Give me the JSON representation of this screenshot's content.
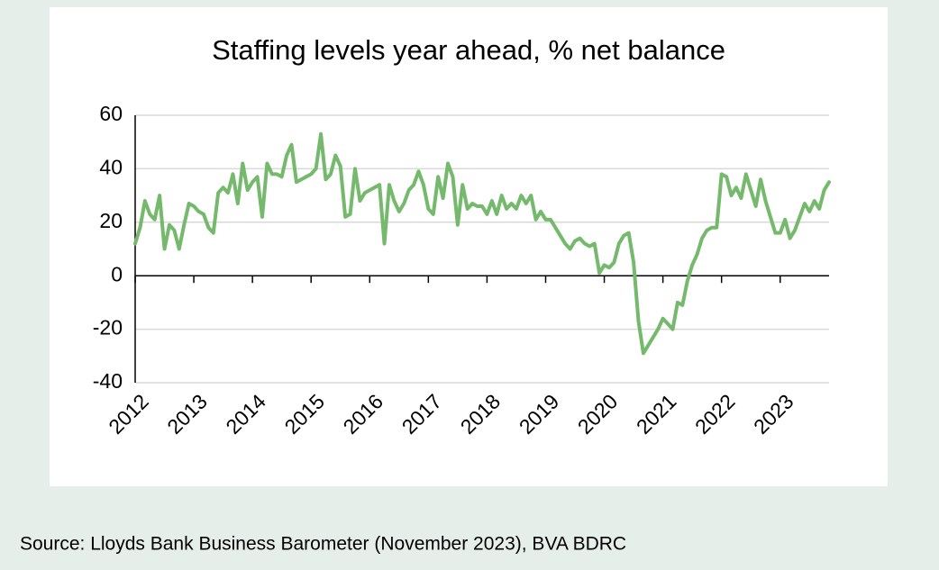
{
  "chart_data": {
    "type": "line",
    "title": "Staffing levels year ahead, % net balance",
    "source": "Source: Lloyds Bank Business Barometer (November 2023), BVA BDRC",
    "categories": [
      "2012",
      null,
      null,
      null,
      null,
      null,
      null,
      null,
      null,
      null,
      null,
      null,
      "2013",
      null,
      null,
      null,
      null,
      null,
      null,
      null,
      null,
      null,
      null,
      null,
      "2014",
      null,
      null,
      null,
      null,
      null,
      null,
      null,
      null,
      null,
      null,
      null,
      "2015",
      null,
      null,
      null,
      null,
      null,
      null,
      null,
      null,
      null,
      null,
      null,
      "2016",
      null,
      null,
      null,
      null,
      null,
      null,
      null,
      null,
      null,
      null,
      null,
      "2017",
      null,
      null,
      null,
      null,
      null,
      null,
      null,
      null,
      null,
      null,
      null,
      "2018",
      null,
      null,
      null,
      null,
      null,
      null,
      null,
      null,
      null,
      null,
      null,
      "2019",
      null,
      null,
      null,
      null,
      null,
      null,
      null,
      null,
      null,
      null,
      null,
      "2020",
      null,
      null,
      null,
      null,
      null,
      null,
      null,
      null,
      null,
      null,
      null,
      "2021",
      null,
      null,
      null,
      null,
      null,
      null,
      null,
      null,
      null,
      null,
      null,
      "2022",
      null,
      null,
      null,
      null,
      null,
      null,
      null,
      null,
      null,
      null,
      null,
      "2023",
      null,
      null,
      null,
      null,
      null,
      null,
      null,
      null,
      null,
      null
    ],
    "series": [
      {
        "name": "Staffing levels",
        "color": "#74b96c",
        "values": [
          12,
          18,
          28,
          23,
          21,
          30,
          10,
          19,
          17,
          10,
          19,
          27,
          26,
          24,
          23,
          18,
          16,
          31,
          33,
          31,
          38,
          27,
          42,
          32,
          35,
          37,
          22,
          42,
          38,
          38,
          37,
          45,
          49,
          35,
          36,
          37,
          38,
          40,
          53,
          36,
          38,
          45,
          41,
          22,
          23,
          40,
          28,
          31,
          32,
          33,
          34,
          12,
          34,
          28,
          24,
          27,
          32,
          34,
          39,
          34,
          25,
          23,
          37,
          29,
          42,
          37,
          19,
          34,
          25,
          27,
          26,
          26,
          23,
          28,
          23,
          30,
          25,
          27,
          25,
          30,
          27,
          30,
          21,
          24,
          21,
          21,
          18,
          15,
          12,
          10,
          13,
          14,
          12,
          11,
          12,
          1,
          4,
          3,
          5,
          12,
          15,
          16,
          5,
          -17,
          -29,
          -26,
          -23,
          -20,
          -16,
          -18,
          -20,
          -10,
          -11,
          -2,
          4,
          8,
          14,
          17,
          18,
          18,
          38,
          37,
          30,
          33,
          29,
          38,
          32,
          26,
          36,
          28,
          22,
          16,
          16,
          21,
          14,
          17,
          22,
          27,
          24,
          28,
          25,
          32,
          35
        ]
      }
    ],
    "ylim": [
      -40,
      60
    ],
    "yticks": [
      -40,
      -20,
      0,
      20,
      40,
      60
    ],
    "grid": true
  }
}
